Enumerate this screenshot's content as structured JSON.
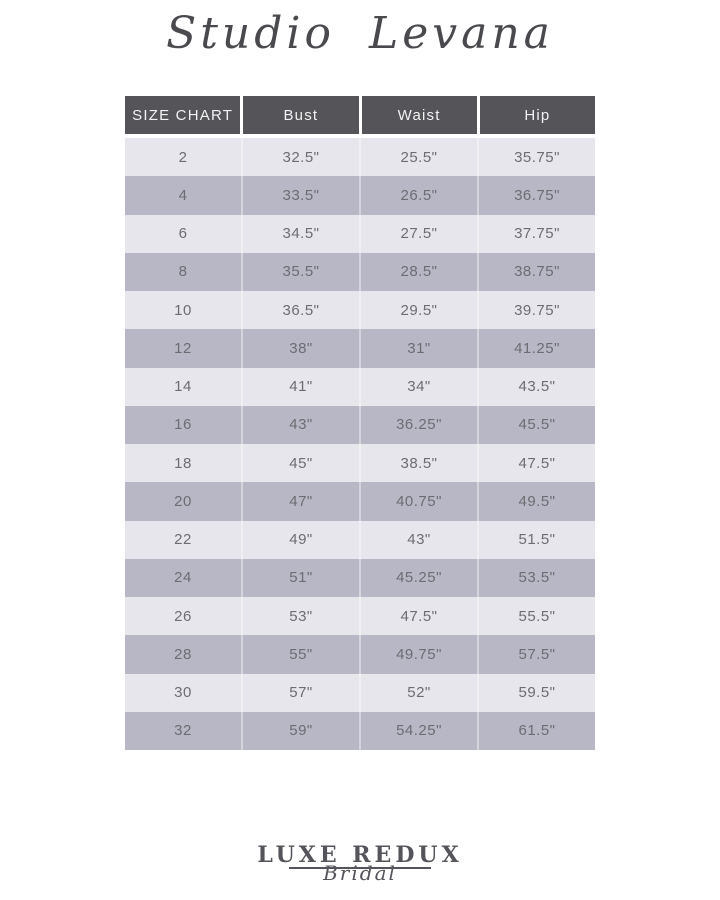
{
  "title": "Studio Levana",
  "footer": {
    "brand": "LUXE REDUX",
    "sub": "Bridal"
  },
  "chart_data": {
    "type": "table",
    "columns": [
      "SIZE CHART",
      "Bust",
      "Waist",
      "Hip"
    ],
    "rows": [
      [
        "2",
        "32.5\"",
        "25.5\"",
        "35.75\""
      ],
      [
        "4",
        "33.5\"",
        "26.5\"",
        "36.75\""
      ],
      [
        "6",
        "34.5\"",
        "27.5\"",
        "37.75\""
      ],
      [
        "8",
        "35.5\"",
        "28.5\"",
        "38.75\""
      ],
      [
        "10",
        "36.5\"",
        "29.5\"",
        "39.75\""
      ],
      [
        "12",
        "38\"",
        "31\"",
        "41.25\""
      ],
      [
        "14",
        "41\"",
        "34\"",
        "43.5\""
      ],
      [
        "16",
        "43\"",
        "36.25\"",
        "45.5\""
      ],
      [
        "18",
        "45\"",
        "38.5\"",
        "47.5\""
      ],
      [
        "20",
        "47\"",
        "40.75\"",
        "49.5\""
      ],
      [
        "22",
        "49\"",
        "43\"",
        "51.5\""
      ],
      [
        "24",
        "51\"",
        "45.25\"",
        "53.5\""
      ],
      [
        "26",
        "53\"",
        "47.5\"",
        "55.5\""
      ],
      [
        "28",
        "55\"",
        "49.75\"",
        "57.5\""
      ],
      [
        "30",
        "57\"",
        "52\"",
        "59.5\""
      ],
      [
        "32",
        "59\"",
        "54.25\"",
        "61.5\""
      ]
    ]
  },
  "colors": {
    "header_bg": "#555459",
    "header_text": "#f2f2f2",
    "row_light": "#e7e6ec",
    "row_dark": "#b8b7c5",
    "cell_text": "#6d6c73",
    "title_text": "#4a4a4e",
    "logo_text": "#55545a"
  }
}
